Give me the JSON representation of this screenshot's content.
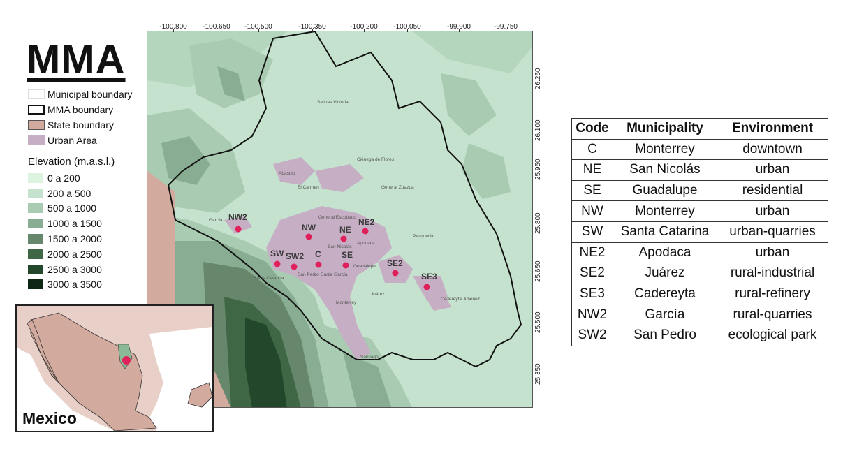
{
  "title": "MMA",
  "legend": {
    "items": [
      {
        "label": "Municipal boundary",
        "color": "#ffffff",
        "border": "#dddddd"
      },
      {
        "label": "MMA boundary",
        "color": "#ffffff",
        "border": "#111111"
      },
      {
        "label": "State boundary",
        "color": "#d2aa9e",
        "border": "#555555"
      },
      {
        "label": "Urban Area",
        "color": "#c6aec4",
        "border": "#c6aec4"
      }
    ],
    "elevation_heading": "Elevation (m.a.s.l.)",
    "elevation_classes": [
      {
        "label": "0 a 200",
        "color": "#dcf3e0"
      },
      {
        "label": "200 a 500",
        "color": "#c4e2cd"
      },
      {
        "label": "500 a 1000",
        "color": "#a9cbb2"
      },
      {
        "label": "1000 a 1500",
        "color": "#89ad92"
      },
      {
        "label": "1500 a 2000",
        "color": "#66876c"
      },
      {
        "label": "2000 a 2500",
        "color": "#3f6645"
      },
      {
        "label": "2500 a 3000",
        "color": "#22472a"
      },
      {
        "label": "3000 a 3500",
        "color": "#0d2714"
      }
    ]
  },
  "map": {
    "longitude_ticks": [
      "-100.800",
      "-100.650",
      "-100.500",
      "-100.350",
      "-100.200",
      "-100.050",
      "-99.900",
      "-99.750"
    ],
    "latitude_ticks": [
      "26.250",
      "26.100",
      "25.950",
      "25.800",
      "25.650",
      "25.500",
      "25.350"
    ],
    "sites": [
      {
        "code": "NW2"
      },
      {
        "code": "NW"
      },
      {
        "code": "NE"
      },
      {
        "code": "NE2"
      },
      {
        "code": "SW"
      },
      {
        "code": "SW2"
      },
      {
        "code": "C"
      },
      {
        "code": "SE"
      },
      {
        "code": "SE2"
      },
      {
        "code": "SE3"
      }
    ],
    "site_color": "#e0205a",
    "place_names": [
      "Salinas Victoria",
      "Ciénega de Flores",
      "General Zuazua",
      "Abasolo",
      "El Carmen",
      "García",
      "General Escobedo",
      "San Nicolás",
      "Apodaca",
      "Pesquería",
      "Santa Catarina",
      "San Pedro Garza García",
      "Guadalupe",
      "Monterrey",
      "Juárez",
      "Cadereyta Jiménez",
      "Santiago"
    ]
  },
  "inset": {
    "label": "Mexico",
    "land_color": "#d2aa9e",
    "highlight_color": "#e0205a"
  },
  "table": {
    "headers": [
      "Code",
      "Municipality",
      "Environment"
    ],
    "rows": [
      [
        "C",
        "Monterrey",
        "downtown"
      ],
      [
        "NE",
        "San Nicolás",
        "urban"
      ],
      [
        "SE",
        "Guadalupe",
        "residential"
      ],
      [
        "NW",
        "Monterrey",
        "urban"
      ],
      [
        "SW",
        "Santa Catarina",
        "urban-quarries"
      ],
      [
        "NE2",
        "Apodaca",
        "urban"
      ],
      [
        "SE2",
        "Juárez",
        "rural-industrial"
      ],
      [
        "SE3",
        "Cadereyta",
        "rural-refinery"
      ],
      [
        "NW2",
        "García",
        "rural-quarries"
      ],
      [
        "SW2",
        "San Pedro",
        "ecological park"
      ]
    ]
  }
}
